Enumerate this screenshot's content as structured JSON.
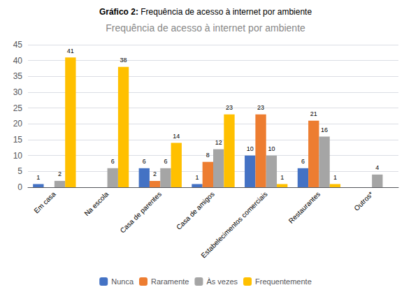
{
  "chart_data": {
    "type": "bar",
    "subtitle": "Gráfico 2: Frequência de acesso à internet por ambiente",
    "title": "Frequência de acesso à internet por ambiente",
    "categories": [
      "Em casa",
      "Na escola",
      "Casa de parentes",
      "Casa de amigos",
      "Estabelecimentos comerciais",
      "Restaurantes",
      "Outros*"
    ],
    "series": [
      {
        "name": "Nunca",
        "color": "#4472C4",
        "values": [
          1,
          0,
          6,
          1,
          10,
          6,
          0
        ]
      },
      {
        "name": "Raramente",
        "color": "#ED7D31",
        "values": [
          0,
          0,
          2,
          8,
          23,
          21,
          0
        ]
      },
      {
        "name": "Às vezes",
        "color": "#A5A5A5",
        "values": [
          2,
          6,
          6,
          12,
          10,
          16,
          4
        ]
      },
      {
        "name": "Frequentemente",
        "color": "#FFC000",
        "values": [
          41,
          38,
          14,
          23,
          1,
          1,
          0
        ]
      }
    ],
    "ylim": [
      0,
      45
    ],
    "yticks": [
      0,
      5,
      10,
      15,
      20,
      25,
      30,
      35,
      40,
      45
    ],
    "grid": true,
    "legend": "bottom",
    "data_labels": true
  }
}
